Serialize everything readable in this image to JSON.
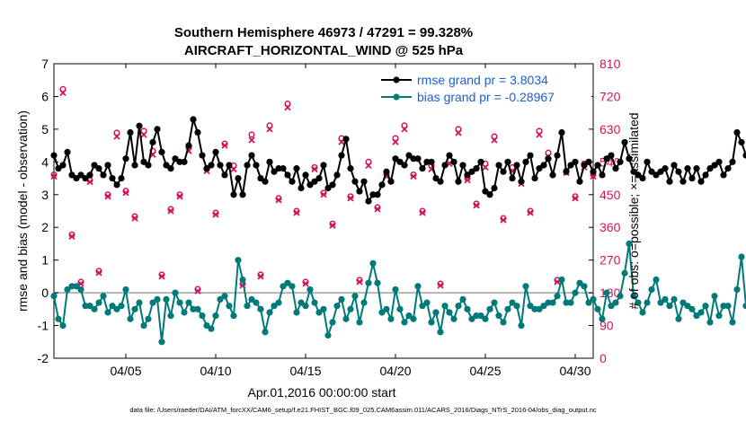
{
  "chart_data": {
    "type": "line",
    "title": "Southern Hemisphere 46973 / 47291 = 99.328%",
    "subtitle": "AIRCRAFT_HORIZONTAL_WIND @ 525 hPa",
    "xlabel": "Apr.01,2016 00:00:00 start",
    "ylabel": "rmse and bias (model - observation)",
    "y2label": "# of obs: o=possible; ×=assimilated",
    "footer": "data file: /Users/raeder/DAI/ATM_forcXX/CAM6_setup/f.e21.FHIST_BGC.f09_025.CAM6assim.011/ACARS_2016/Diags_NTrS_2016-04/obs_diag_output.nc",
    "xlim": [
      1.0,
      31.0
    ],
    "ylim": [
      -2,
      7
    ],
    "y2lim": [
      0,
      810
    ],
    "x_ticks": [
      5,
      10,
      15,
      20,
      25,
      30
    ],
    "x_tick_labels": [
      "04/05",
      "04/10",
      "04/15",
      "04/20",
      "04/25",
      "04/30"
    ],
    "y_ticks": [
      -2,
      -1,
      0,
      1,
      2,
      3,
      4,
      5,
      6,
      7
    ],
    "y2_ticks": [
      0,
      90,
      180,
      270,
      360,
      450,
      540,
      630,
      720,
      810
    ],
    "series": [
      {
        "name": "rmse grand pr = 3.8034",
        "color": "#000000",
        "x0": 1.0,
        "dx": 0.25,
        "values": [
          4.2,
          3.8,
          3.9,
          4.3,
          3.6,
          3.5,
          3.6,
          3.5,
          3.6,
          3.9,
          3.8,
          3.6,
          3.9,
          3.5,
          3.3,
          3.5,
          4.1,
          4.9,
          3.9,
          5.1,
          4.0,
          3.9,
          4.6,
          5.0,
          4.3,
          3.9,
          3.8,
          4.1,
          4.0,
          4.0,
          4.5,
          5.3,
          4.9,
          4.2,
          3.8,
          3.9,
          4.3,
          3.9,
          3.6,
          3.9,
          3.0,
          3.5,
          3.0,
          3.9,
          4.2,
          3.9,
          3.5,
          3.4,
          4.0,
          3.7,
          3.8,
          3.8,
          3.6,
          3.4,
          3.8,
          3.2,
          3.6,
          3.3,
          3.4,
          3.5,
          3.9,
          3.2,
          3.3,
          3.6,
          4.2,
          4.7,
          3.8,
          3.4,
          3.1,
          3.4,
          2.8,
          3.0,
          3.0,
          3.3,
          3.7,
          3.4,
          4.1,
          4.0,
          3.9,
          4.2,
          4.1,
          4.1,
          3.8,
          4.0,
          4.0,
          3.5,
          3.4,
          3.9,
          4.2,
          4.0,
          3.4,
          3.9,
          3.6,
          3.7,
          3.8,
          4.0,
          3.1,
          3.0,
          3.2,
          3.9,
          3.7,
          4.0,
          3.5,
          3.9,
          3.4,
          4.0,
          4.2,
          3.5,
          3.8,
          3.9,
          4.1,
          3.6,
          4.2,
          4.9,
          3.7,
          3.9,
          4.0,
          3.4,
          3.9,
          4.0,
          3.7,
          3.9,
          3.6,
          4.1,
          4.2,
          3.8,
          4.0,
          4.6,
          4.1,
          3.7,
          3.6,
          3.5,
          4.0,
          3.7,
          3.6,
          3.7,
          3.8,
          3.4,
          3.9,
          3.7,
          3.4,
          3.8,
          3.5,
          3.8,
          3.4,
          3.6,
          3.8,
          3.9,
          4.0,
          3.6,
          3.8,
          4.0,
          4.9,
          4.6,
          4.2,
          3.9,
          4.0,
          4.3,
          3.9,
          4.0,
          4.7,
          5.7
        ]
      },
      {
        "name": "bias grand pr = -0.28967",
        "color": "#007a78",
        "x0": 1.0,
        "dx": 0.25,
        "values": [
          -0.1,
          -0.8,
          -1.0,
          0.1,
          0.2,
          0.2,
          0.1,
          -0.4,
          -0.4,
          -0.5,
          -0.3,
          -0.1,
          -0.6,
          -0.4,
          -0.5,
          -0.4,
          0.1,
          -0.8,
          -0.5,
          -0.3,
          -1.0,
          -0.8,
          -0.3,
          -0.2,
          -1.5,
          -0.2,
          -0.7,
          0.0,
          -0.3,
          -0.6,
          -0.3,
          -0.5,
          -0.5,
          -0.7,
          -1.0,
          -1.1,
          -0.7,
          -0.2,
          -0.1,
          -0.4,
          -0.7,
          1.0,
          0.4,
          -0.4,
          -0.2,
          -0.3,
          -0.5,
          -1.2,
          -0.6,
          -0.4,
          -0.3,
          0.2,
          0.3,
          0.2,
          -0.6,
          -0.3,
          -0.4,
          0.1,
          -0.3,
          -0.6,
          -0.5,
          -1.3,
          -0.9,
          -0.4,
          -0.2,
          -0.8,
          -0.5,
          -0.1,
          -0.9,
          -0.3,
          0.3,
          0.9,
          0.3,
          -0.6,
          -0.5,
          -0.8,
          0.1,
          -0.5,
          -0.9,
          -0.7,
          -0.8,
          0.2,
          -0.4,
          -0.3,
          -0.9,
          -0.6,
          -1.2,
          -0.4,
          -0.6,
          -0.8,
          -0.4,
          -0.2,
          -0.5,
          -0.8,
          -0.7,
          -0.7,
          -0.8,
          -0.5,
          -0.3,
          -0.7,
          -0.9,
          -0.5,
          -0.3,
          -0.4,
          -1.0,
          0.2,
          -0.4,
          -0.5,
          -0.5,
          -0.4,
          -0.3,
          -0.3,
          -0.1,
          0.4,
          -0.3,
          -0.3,
          0.0,
          0.3,
          0.2,
          -0.3,
          -0.2,
          -0.5,
          -0.8,
          0.0,
          -0.4,
          -0.3,
          -0.1,
          0.6,
          1.5,
          -0.1,
          -0.3,
          -0.6,
          -0.3,
          0.1,
          0.4,
          -0.3,
          -0.2,
          -0.4,
          -0.2,
          -0.8,
          -0.3,
          -0.4,
          -0.5,
          -0.7,
          -0.6,
          -0.4,
          -0.9,
          -0.1,
          -0.7,
          -0.4,
          -0.4,
          -0.9,
          0.1,
          1.1,
          -0.4,
          -0.3,
          -0.7,
          -0.6,
          1.0,
          -0.7,
          -0.8
        ]
      },
      {
        "name": "possible (o)",
        "color": "#d4145a",
        "marker": "circle",
        "axis": "right",
        "x0": 1.0,
        "dx": 0.5,
        "values": [
          505,
          740,
          340,
          210,
          490,
          240,
          450,
          620,
          460,
          390,
          625,
          570,
          230,
          410,
          450,
          580,
          190,
          520,
          400,
          590,
          530,
          205,
          615,
          230,
          640,
          440,
          700,
          405,
          210,
          525,
          455,
          370,
          605,
          445,
          215,
          540,
          415,
          505,
          605,
          640,
          505,
          405,
          530,
          205,
          545,
          630,
          495,
          425,
          535,
          610,
          385,
          525,
          485,
          405,
          625,
          565,
          215,
          515,
          445,
          535,
          505,
          335,
          640,
          505,
          535,
          235,
          345,
          445,
          535,
          170,
          405,
          455,
          515,
          305,
          425,
          525,
          505,
          335,
          505,
          480,
          185,
          400,
          565,
          485,
          515,
          210,
          585,
          495,
          185,
          520
        ]
      },
      {
        "name": "assimilated (×)",
        "color": "#d4145a",
        "marker": "x",
        "axis": "right",
        "x0": 1.0,
        "dx": 0.5,
        "values": [
          500,
          730,
          335,
          205,
          485,
          235,
          445,
          610,
          455,
          385,
          615,
          560,
          225,
          405,
          445,
          570,
          185,
          515,
          395,
          585,
          520,
          200,
          600,
          225,
          630,
          435,
          690,
          400,
          205,
          520,
          450,
          365,
          595,
          440,
          210,
          530,
          410,
          500,
          595,
          630,
          500,
          400,
          520,
          200,
          535,
          620,
          490,
          420,
          525,
          600,
          380,
          515,
          480,
          400,
          615,
          555,
          210,
          510,
          440,
          525,
          500,
          330,
          630,
          500,
          525,
          230,
          340,
          440,
          525,
          165,
          400,
          450,
          510,
          300,
          420,
          515,
          500,
          330,
          500,
          475,
          180,
          395,
          555,
          480,
          510,
          205,
          575,
          490,
          180,
          510
        ]
      }
    ],
    "legend": {
      "placement": "top-right",
      "entries": [
        "rmse grand pr = 3.8034",
        "bias grand pr = -0.28967"
      ]
    }
  },
  "colors": {
    "rmse": "#000000",
    "bias": "#007a78",
    "counts": "#d4145a",
    "legend_text": "#1a5fd0",
    "zero_line": "#b5b5b5"
  }
}
